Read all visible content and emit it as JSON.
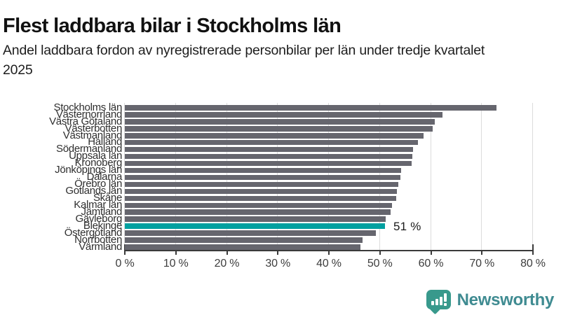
{
  "header": {
    "title": "Flest laddbara bilar i Stockholms län",
    "subtitle": "Andel laddbara fordon av nyregistrerade personbilar per län under tredje kvartalet 2025"
  },
  "chart_data": {
    "type": "bar",
    "orientation": "horizontal",
    "title": "Flest laddbara bilar i Stockholms län",
    "subtitle": "Andel laddbara fordon av nyregistrerade personbilar per län under tredje kvartalet 2025",
    "categories": [
      "Stockholms län",
      "Västernorrland",
      "Västra Götaland",
      "Västerbotten",
      "Västmanland",
      "Halland",
      "Södermanland",
      "Uppsala län",
      "Kronoberg",
      "Jönköpings län",
      "Dalarna",
      "Örebro län",
      "Gotlands län",
      "Skåne",
      "Kalmar län",
      "Jämtland",
      "Gävleborg",
      "Blekinge",
      "Östergötland",
      "Norrbotten",
      "Värmland"
    ],
    "values": [
      72.8,
      62.3,
      60.8,
      60.3,
      58.5,
      57.4,
      56.5,
      56.4,
      56.2,
      54.2,
      54.0,
      53.6,
      53.3,
      53.2,
      52.4,
      52.1,
      51.2,
      51.0,
      49.2,
      46.6,
      46.2
    ],
    "highlight_index": 17,
    "highlight_category": "Blekinge",
    "highlight_annotation": "51 %",
    "x_tick_labels": [
      "0 %",
      "10 %",
      "20 %",
      "30 %",
      "40 %",
      "50 %",
      "60 %",
      "70 %",
      "80 %"
    ],
    "xlim": [
      0,
      80
    ],
    "grid": true,
    "bar_color": "#66666e",
    "highlight_color": "#00a0a0",
    "gridline_color": "#dcdcdc",
    "axis_color": "#3a3a3a"
  },
  "footer": {
    "brand": "Newsworthy",
    "brand_color": "#3f8b91",
    "logo_icon": "bar-chart-speech-bubble-icon",
    "logo_icon_color": "#38998c"
  }
}
